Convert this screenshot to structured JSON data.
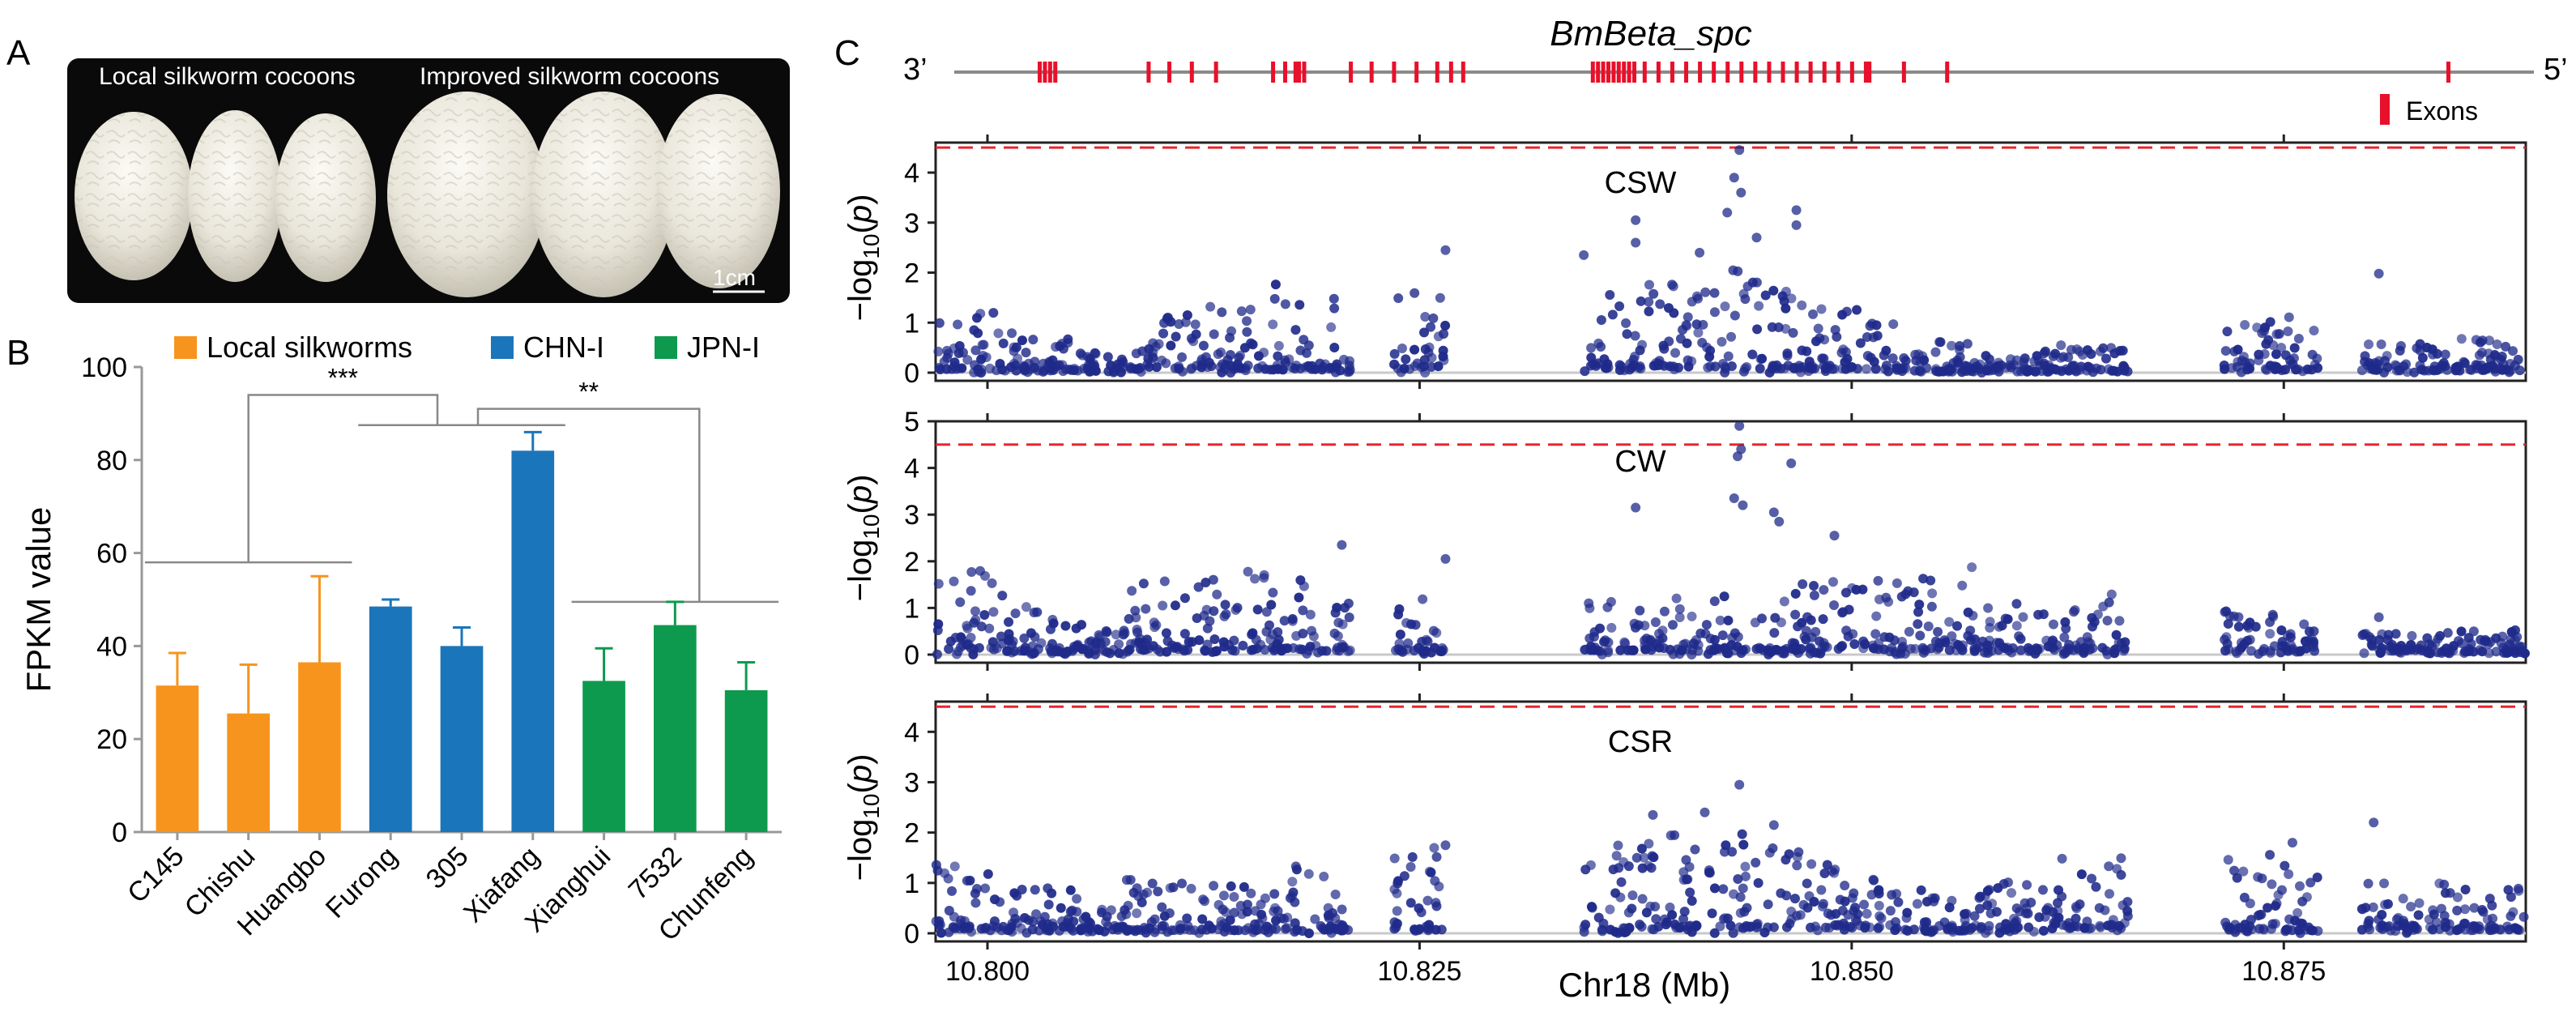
{
  "panels": {
    "a": "A",
    "b": "B",
    "c": "C"
  },
  "photo": {
    "local_label": "Local silkworm cocoons",
    "improved_label": "Improved silkworm cocoons",
    "scale_bar": "1cm"
  },
  "colors": {
    "local": "#f7941d",
    "chn": "#1b75bb",
    "jpn": "#0d9a4e",
    "points": "#1f2a8a",
    "threshold": "#e8262d",
    "exon": "#e8102a",
    "gene_line": "#8a8a8a"
  },
  "chart_data": [
    {
      "type": "bar",
      "title": "",
      "ylabel": "FPKM value",
      "xlabel": "",
      "ylim": [
        0,
        100
      ],
      "yticks": [
        "0",
        "20",
        "40",
        "60",
        "80",
        "100"
      ],
      "legend": [
        {
          "name": "Local silkworms",
          "color_key": "local"
        },
        {
          "name": "CHN-I",
          "color_key": "chn"
        },
        {
          "name": "JPN-I",
          "color_key": "jpn"
        }
      ],
      "legend_position": "top",
      "categories": [
        "C145",
        "Chishu",
        "Huangbo",
        "Furong",
        "305",
        "Xiafang",
        "Xianghui",
        "7532",
        "Chunfeng"
      ],
      "groups": [
        "local",
        "local",
        "local",
        "chn",
        "chn",
        "chn",
        "jpn",
        "jpn",
        "jpn"
      ],
      "values": [
        31.5,
        25.5,
        36.5,
        48.5,
        40.0,
        82.0,
        32.5,
        44.5,
        30.5
      ],
      "errors": [
        7.0,
        10.5,
        18.5,
        1.5,
        4.0,
        4.0,
        7.0,
        5.0,
        6.0
      ],
      "significance": [
        {
          "label": "***",
          "between": "local vs CHN-I"
        },
        {
          "label": "**",
          "between": "CHN-I vs JPN-I"
        }
      ]
    },
    {
      "type": "scatter",
      "gene": "BmBeta_spc",
      "strand_left": "3’",
      "strand_right": "5’",
      "legend_label": "Exons",
      "exon_positions_mb": [
        10.803,
        10.8033,
        10.8036,
        10.8039,
        10.8093,
        10.8105,
        10.8118,
        10.8132,
        10.8165,
        10.8172,
        10.8178,
        10.818,
        10.8183,
        10.821,
        10.8222,
        10.8235,
        10.8248,
        10.826,
        10.8268,
        10.8275,
        10.835,
        10.8353,
        10.8356,
        10.8359,
        10.8362,
        10.8365,
        10.8368,
        10.8371,
        10.8374,
        10.838,
        10.8388,
        10.8396,
        10.8404,
        10.8412,
        10.842,
        10.8428,
        10.8436,
        10.8444,
        10.8452,
        10.846,
        10.8468,
        10.8476,
        10.8484,
        10.8492,
        10.85,
        10.8508,
        10.851,
        10.853,
        10.8555,
        10.8845
      ],
      "xlabel": "Chr18 (Mb)",
      "ylabel_parts": [
        "−log",
        "10",
        "(",
        "p",
        ")"
      ],
      "xlim": [
        10.797,
        10.889
      ],
      "xticks": [
        "10.800",
        "10.825",
        "10.850",
        "10.875"
      ],
      "xtick_values": [
        10.8,
        10.825,
        10.85,
        10.875
      ],
      "subplots": [
        {
          "title": "CSW",
          "ylim": [
            0,
            4.6
          ],
          "yticks": [
            "0",
            "1",
            "2",
            "3",
            "4"
          ],
          "threshold": 4.5,
          "highlights": [
            [
              10.8435,
              4.45
            ],
            [
              10.8432,
              3.9
            ],
            [
              10.8436,
              3.6
            ],
            [
              10.8428,
              3.2
            ],
            [
              10.8375,
              3.05
            ],
            [
              10.8468,
              3.25
            ],
            [
              10.8468,
              2.95
            ],
            [
              10.8805,
              1.98
            ],
            [
              10.8265,
              2.45
            ],
            [
              10.8345,
              2.35
            ],
            [
              10.8375,
              2.6
            ],
            [
              10.8445,
              2.7
            ],
            [
              10.8412,
              2.4
            ]
          ],
          "segments": [
            {
              "from": 10.797,
              "to": 10.8005,
              "base": 0.35,
              "peak": 1.15
            },
            {
              "from": 10.8005,
              "to": 10.8055,
              "base": 0.2,
              "peak": 0.8
            },
            {
              "from": 10.8055,
              "to": 10.808,
              "base": 0.1,
              "peak": 0.4
            },
            {
              "from": 10.808,
              "to": 10.8125,
              "base": 0.35,
              "peak": 1.1
            },
            {
              "from": 10.8125,
              "to": 10.8165,
              "base": 0.35,
              "peak": 1.3
            },
            {
              "from": 10.8165,
              "to": 10.821,
              "base": 0.3,
              "peak": 1.75
            },
            {
              "from": 10.8235,
              "to": 10.8265,
              "base": 0.3,
              "peak": 1.6
            },
            {
              "from": 10.8345,
              "to": 10.8375,
              "base": 0.45,
              "peak": 1.5
            },
            {
              "from": 10.8375,
              "to": 10.8425,
              "base": 0.5,
              "peak": 1.8
            },
            {
              "from": 10.8425,
              "to": 10.847,
              "base": 0.4,
              "peak": 2.0
            },
            {
              "from": 10.847,
              "to": 10.8525,
              "base": 0.35,
              "peak": 1.3
            },
            {
              "from": 10.8525,
              "to": 10.857,
              "base": 0.1,
              "peak": 0.6
            },
            {
              "from": 10.857,
              "to": 10.861,
              "base": 0.1,
              "peak": 0.35
            },
            {
              "from": 10.861,
              "to": 10.866,
              "base": 0.1,
              "peak": 0.6
            },
            {
              "from": 10.8715,
              "to": 10.8745,
              "base": 0.3,
              "peak": 1.0
            },
            {
              "from": 10.8745,
              "to": 10.877,
              "base": 0.3,
              "peak": 1.05
            },
            {
              "from": 10.8795,
              "to": 10.8845,
              "base": 0.2,
              "peak": 0.55
            },
            {
              "from": 10.8845,
              "to": 10.889,
              "base": 0.2,
              "peak": 0.7
            }
          ]
        },
        {
          "title": "CW",
          "ylim": [
            0,
            5
          ],
          "yticks": [
            "0",
            "1",
            "2",
            "3",
            "4",
            "5"
          ],
          "threshold": 4.5,
          "highlights": [
            [
              10.8435,
              4.9
            ],
            [
              10.8436,
              4.4
            ],
            [
              10.8434,
              4.25
            ],
            [
              10.8432,
              3.35
            ],
            [
              10.8437,
              3.2
            ],
            [
              10.8465,
              4.1
            ],
            [
              10.8455,
              3.05
            ],
            [
              10.8458,
              2.85
            ],
            [
              10.8375,
              3.15
            ],
            [
              10.849,
              2.55
            ],
            [
              10.8265,
              2.05
            ],
            [
              10.8205,
              2.35
            ],
            [
              10.8805,
              0.8
            ]
          ],
          "segments": [
            {
              "from": 10.797,
              "to": 10.8005,
              "base": 0.55,
              "peak": 1.8
            },
            {
              "from": 10.8005,
              "to": 10.8055,
              "base": 0.35,
              "peak": 1.3
            },
            {
              "from": 10.8055,
              "to": 10.808,
              "base": 0.1,
              "peak": 0.5
            },
            {
              "from": 10.808,
              "to": 10.8125,
              "base": 0.5,
              "peak": 1.6
            },
            {
              "from": 10.8125,
              "to": 10.8165,
              "base": 0.4,
              "peak": 1.7
            },
            {
              "from": 10.8165,
              "to": 10.821,
              "base": 0.4,
              "peak": 1.7
            },
            {
              "from": 10.8235,
              "to": 10.8265,
              "base": 0.35,
              "peak": 1.2
            },
            {
              "from": 10.8345,
              "to": 10.8375,
              "base": 0.45,
              "peak": 1.1
            },
            {
              "from": 10.8375,
              "to": 10.8425,
              "base": 0.45,
              "peak": 1.2
            },
            {
              "from": 10.8425,
              "to": 10.847,
              "base": 0.45,
              "peak": 1.35
            },
            {
              "from": 10.847,
              "to": 10.8525,
              "base": 0.55,
              "peak": 1.5
            },
            {
              "from": 10.8525,
              "to": 10.857,
              "base": 0.45,
              "peak": 1.85
            },
            {
              "from": 10.857,
              "to": 10.861,
              "base": 0.45,
              "peak": 1.15
            },
            {
              "from": 10.861,
              "to": 10.866,
              "base": 0.4,
              "peak": 1.3
            },
            {
              "from": 10.8715,
              "to": 10.8745,
              "base": 0.35,
              "peak": 0.9
            },
            {
              "from": 10.8745,
              "to": 10.877,
              "base": 0.3,
              "peak": 0.7
            },
            {
              "from": 10.8795,
              "to": 10.8845,
              "base": 0.15,
              "peak": 0.45
            },
            {
              "from": 10.8845,
              "to": 10.889,
              "base": 0.15,
              "peak": 0.5
            }
          ]
        },
        {
          "title": "CSR",
          "ylim": [
            0,
            4.6
          ],
          "yticks": [
            "0",
            "1",
            "2",
            "3",
            "4"
          ],
          "threshold": 4.5,
          "highlights": [
            [
              10.8435,
              2.95
            ],
            [
              10.8415,
              2.4
            ],
            [
              10.8385,
              2.35
            ],
            [
              10.8802,
              2.2
            ],
            [
              10.8455,
              2.15
            ],
            [
              10.8265,
              1.75
            ],
            [
              10.8755,
              1.8
            ]
          ],
          "segments": [
            {
              "from": 10.797,
              "to": 10.8005,
              "base": 0.45,
              "peak": 1.3
            },
            {
              "from": 10.8005,
              "to": 10.8055,
              "base": 0.25,
              "peak": 0.85
            },
            {
              "from": 10.8055,
              "to": 10.808,
              "base": 0.15,
              "peak": 0.45
            },
            {
              "from": 10.808,
              "to": 10.8125,
              "base": 0.3,
              "peak": 1.05
            },
            {
              "from": 10.8125,
              "to": 10.8165,
              "base": 0.3,
              "peak": 0.9
            },
            {
              "from": 10.8165,
              "to": 10.821,
              "base": 0.35,
              "peak": 1.35
            },
            {
              "from": 10.8235,
              "to": 10.8265,
              "base": 0.35,
              "peak": 1.85
            },
            {
              "from": 10.8345,
              "to": 10.8375,
              "base": 0.5,
              "peak": 2.0
            },
            {
              "from": 10.8375,
              "to": 10.8425,
              "base": 0.55,
              "peak": 1.9
            },
            {
              "from": 10.8425,
              "to": 10.847,
              "base": 0.6,
              "peak": 1.85
            },
            {
              "from": 10.847,
              "to": 10.8525,
              "base": 0.55,
              "peak": 1.3
            },
            {
              "from": 10.8525,
              "to": 10.857,
              "base": 0.25,
              "peak": 0.85
            },
            {
              "from": 10.857,
              "to": 10.861,
              "base": 0.4,
              "peak": 1.0
            },
            {
              "from": 10.861,
              "to": 10.866,
              "base": 0.5,
              "peak": 1.5
            },
            {
              "from": 10.8715,
              "to": 10.8745,
              "base": 0.35,
              "peak": 1.6
            },
            {
              "from": 10.8745,
              "to": 10.877,
              "base": 0.3,
              "peak": 1.4
            },
            {
              "from": 10.8795,
              "to": 10.8845,
              "base": 0.3,
              "peak": 1.0
            },
            {
              "from": 10.8845,
              "to": 10.889,
              "base": 0.3,
              "peak": 0.9
            }
          ]
        }
      ]
    }
  ]
}
